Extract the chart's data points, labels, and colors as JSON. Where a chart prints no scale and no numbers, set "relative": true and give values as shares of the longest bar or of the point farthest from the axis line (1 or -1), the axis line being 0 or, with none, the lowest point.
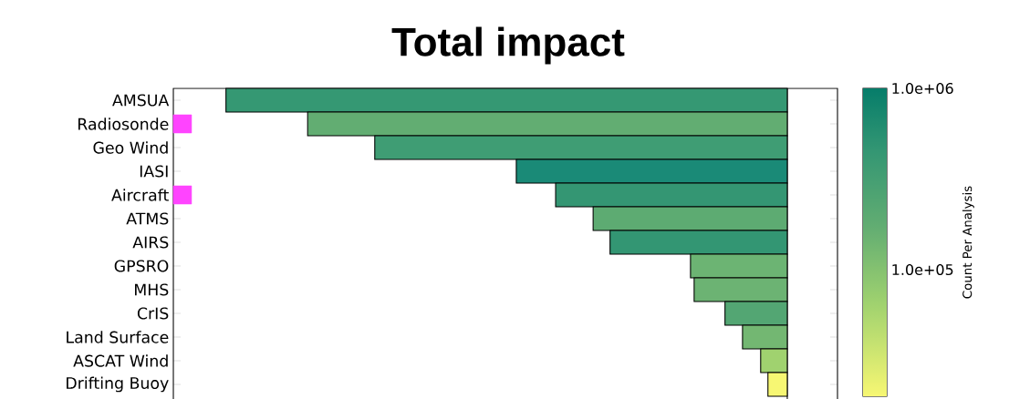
{
  "chart_data": {
    "type": "bar",
    "orientation": "horizontal",
    "relative": true,
    "title": "Total impact",
    "clabel": "Count Per Analysis",
    "clim": [
      20000,
      1000000
    ],
    "cticks": [
      {
        "value": 100000,
        "label": "1.0e+05"
      },
      {
        "value": 1000000,
        "label": "1.0e+06"
      }
    ],
    "tick_labels": "y",
    "categories": [
      "AMSUA",
      "Radiosonde",
      "Geo Wind",
      "IASI",
      "Aircraft",
      "ATMS",
      "AIRS",
      "GPSRO",
      "MHS",
      "CrIS",
      "Land Surface",
      "ASCAT Wind",
      "Drifting Buoy"
    ],
    "series": [
      {
        "values": [
          -0.928,
          -0.793,
          -0.682,
          -0.448,
          -0.383,
          -0.321,
          -0.293,
          -0.16,
          -0.154,
          -0.103,
          -0.074,
          -0.044,
          -0.032
        ],
        "colors": [
          "#359873",
          "#62ad72",
          "#3f9d74",
          "#1a8a77",
          "#349673",
          "#5dab72",
          "#339673",
          "#6cb473",
          "#6cb373",
          "#53a673",
          "#73b772",
          "#a0d26f",
          "#f7f773"
        ]
      },
      {
        "type": "scatter",
        "marker": "square",
        "color": "#ff44ff",
        "values": [
          null,
          -1,
          null,
          null,
          -1,
          null,
          null,
          null,
          null,
          null,
          null,
          null,
          null
        ]
      }
    ]
  }
}
